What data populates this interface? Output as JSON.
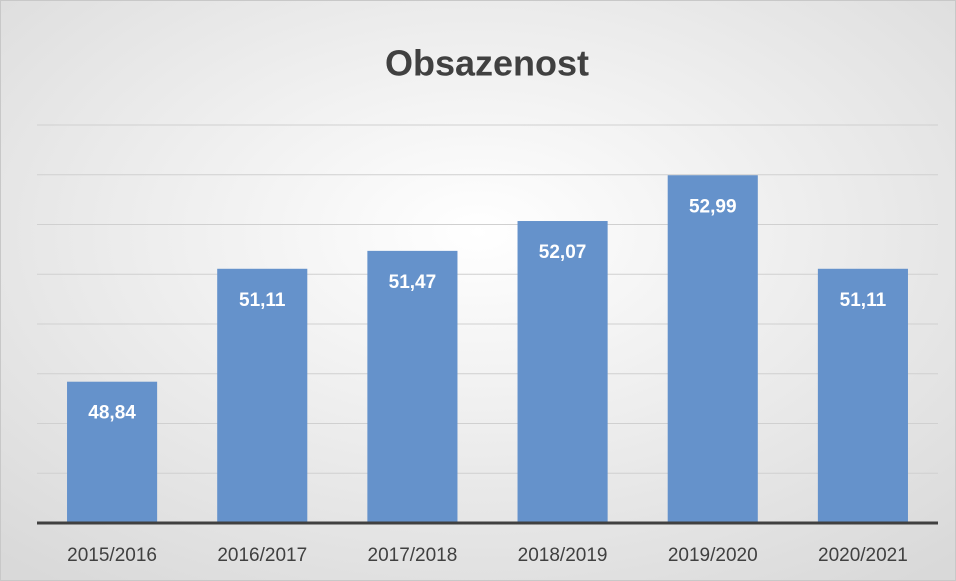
{
  "chart_data": {
    "type": "bar",
    "title": "Obsazenost",
    "categories": [
      "2015/2016",
      "2016/2017",
      "2017/2018",
      "2018/2019",
      "2019/2020",
      "2020/2021"
    ],
    "values": [
      48.84,
      51.11,
      51.47,
      52.07,
      52.99,
      51.11
    ],
    "value_labels": [
      "48,84",
      "51,11",
      "51,47",
      "52,07",
      "52,99",
      "51,11"
    ],
    "color": "#6592cb",
    "ylim": [
      46,
      54
    ],
    "yticks": [
      46,
      47,
      48,
      49,
      50,
      51,
      52,
      53,
      54
    ],
    "grid": true
  }
}
